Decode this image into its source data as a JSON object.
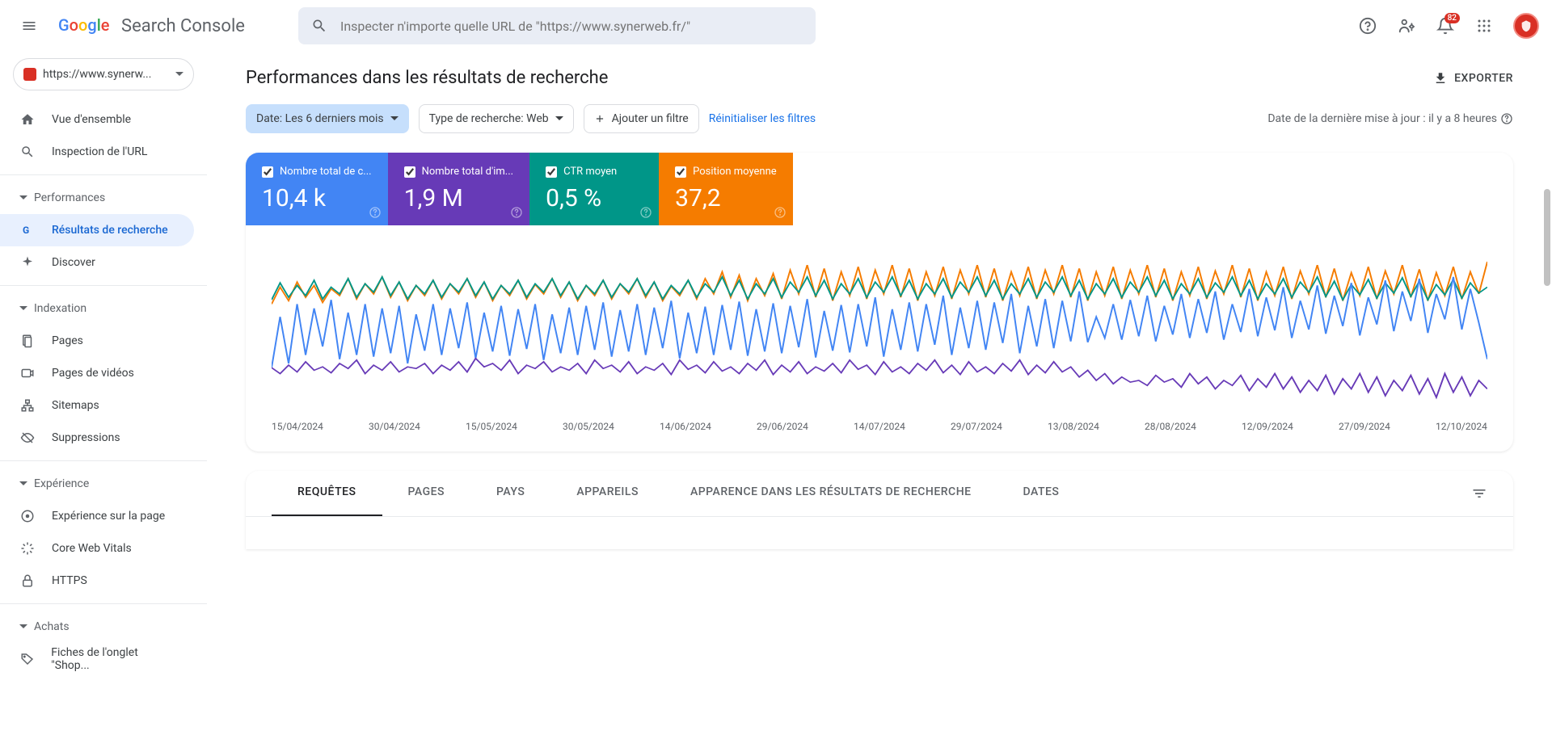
{
  "header": {
    "logo_text": "Search Console",
    "search_placeholder": "Inspecter n'importe quelle URL de \"https://www.synerweb.fr/\"",
    "notification_count": "82"
  },
  "sidebar": {
    "property": "https://www.synerw...",
    "items": {
      "overview": "Vue d'ensemble",
      "url_inspect": "Inspection de l'URL",
      "section_perf": "Performances",
      "search_results": "Résultats de recherche",
      "discover": "Discover",
      "section_index": "Indexation",
      "pages": "Pages",
      "video_pages": "Pages de vidéos",
      "sitemaps": "Sitemaps",
      "removals": "Suppressions",
      "section_exp": "Expérience",
      "page_exp": "Expérience sur la page",
      "cwv": "Core Web Vitals",
      "https": "HTTPS",
      "section_shop": "Achats",
      "shop_tab": "Fiches de l'onglet \"Shop..."
    }
  },
  "page": {
    "title": "Performances dans les résultats de recherche",
    "export": "EXPORTER"
  },
  "filters": {
    "date": "Date: Les 6 derniers mois",
    "type": "Type de recherche: Web",
    "add": "Ajouter un filtre",
    "reset": "Réinitialiser les filtres",
    "updated": "Date de la dernière mise à jour : il y a 8 heures"
  },
  "metrics": [
    {
      "label": "Nombre total de c...",
      "value": "10,4 k",
      "color": "#4285f4"
    },
    {
      "label": "Nombre total d'im...",
      "value": "1,9 M",
      "color": "#673ab7"
    },
    {
      "label": "CTR moyen",
      "value": "0,5 %",
      "color": "#009688"
    },
    {
      "label": "Position moyenne",
      "value": "37,2",
      "color": "#f57c00"
    }
  ],
  "chart": {
    "type": "line",
    "series_colors": {
      "clicks": "#4285f4",
      "impressions": "#673ab7",
      "ctr": "#009688",
      "position": "#f57c00"
    },
    "line_width": 1.5,
    "background": "#ffffff",
    "x_labels": [
      "15/04/2024",
      "30/04/2024",
      "15/05/2024",
      "30/05/2024",
      "14/06/2024",
      "29/06/2024",
      "14/07/2024",
      "29/07/2024",
      "13/08/2024",
      "28/08/2024",
      "12/09/2024",
      "27/09/2024",
      "12/10/2024"
    ],
    "series": {
      "clicks": [
        55,
        115,
        60,
        130,
        70,
        125,
        80,
        135,
        65,
        120,
        70,
        130,
        68,
        125,
        72,
        128,
        60,
        118,
        75,
        130,
        70,
        125,
        78,
        132,
        66,
        120,
        74,
        128,
        69,
        124,
        77,
        130,
        64,
        118,
        72,
        126,
        70,
        128,
        76,
        132,
        68,
        123,
        74,
        130,
        70,
        126,
        78,
        134,
        66,
        120,
        72,
        127,
        70,
        129,
        76,
        133,
        69,
        124,
        74,
        131,
        72,
        128,
        79,
        136,
        67,
        122,
        75,
        129,
        73,
        130,
        80,
        138,
        68,
        124,
        76,
        132,
        74,
        130,
        82,
        140,
        70,
        126,
        78,
        134,
        76,
        132,
        84,
        142,
        72,
        128,
        80,
        136,
        78,
        134,
        86,
        145,
        85,
        115,
        90,
        130,
        88,
        135,
        92,
        140,
        86,
        128,
        94,
        142,
        90,
        136,
        96,
        145,
        88,
        130,
        97,
        148,
        92,
        138,
        99,
        150,
        90,
        134,
        100,
        152,
        95,
        140,
        104,
        155,
        93,
        138,
        106,
        158,
        98,
        145,
        110,
        160,
        96,
        142,
        112,
        162,
        100,
        148,
        108,
        65
      ],
      "impressions": [
        55,
        48,
        58,
        50,
        62,
        52,
        56,
        49,
        60,
        54,
        64,
        48,
        58,
        52,
        62,
        50,
        56,
        54,
        60,
        48,
        58,
        52,
        62,
        50,
        66,
        56,
        60,
        52,
        64,
        48,
        58,
        54,
        62,
        50,
        56,
        52,
        60,
        48,
        64,
        54,
        58,
        50,
        62,
        48,
        56,
        52,
        60,
        47,
        64,
        53,
        58,
        49,
        62,
        51,
        56,
        48,
        60,
        52,
        64,
        47,
        58,
        50,
        62,
        48,
        56,
        51,
        60,
        49,
        64,
        53,
        58,
        47,
        62,
        50,
        56,
        48,
        60,
        52,
        64,
        49,
        58,
        47,
        62,
        50,
        56,
        48,
        60,
        51,
        64,
        47,
        58,
        49,
        62,
        50,
        56,
        44,
        52,
        40,
        48,
        36,
        44,
        38,
        40,
        34,
        46,
        38,
        42,
        32,
        48,
        36,
        44,
        30,
        40,
        34,
        46,
        28,
        42,
        32,
        48,
        30,
        44,
        26,
        40,
        28,
        46,
        24,
        42,
        30,
        48,
        26,
        44,
        22,
        40,
        28,
        46,
        24,
        42,
        20,
        48,
        26,
        44,
        22,
        40,
        30
      ],
      "ctr": [
        135,
        155,
        138,
        152,
        140,
        158,
        136,
        150,
        142,
        160,
        138,
        154,
        144,
        162,
        140,
        156,
        136,
        152,
        142,
        158,
        138,
        154,
        144,
        160,
        140,
        156,
        136,
        152,
        142,
        158,
        138,
        154,
        144,
        160,
        140,
        156,
        136,
        152,
        142,
        158,
        138,
        154,
        144,
        160,
        140,
        156,
        136,
        152,
        142,
        158,
        138,
        154,
        144,
        162,
        140,
        158,
        136,
        154,
        142,
        160,
        138,
        156,
        144,
        162,
        140,
        158,
        136,
        154,
        142,
        160,
        138,
        156,
        144,
        162,
        140,
        158,
        136,
        154,
        142,
        160,
        138,
        156,
        144,
        162,
        140,
        158,
        136,
        154,
        142,
        160,
        138,
        156,
        144,
        162,
        140,
        158,
        136,
        154,
        142,
        160,
        138,
        156,
        144,
        162,
        140,
        158,
        136,
        154,
        142,
        160,
        138,
        155,
        144,
        162,
        140,
        158,
        136,
        154,
        142,
        160,
        138,
        156,
        144,
        162,
        139,
        157,
        135,
        153,
        141,
        159,
        137,
        155,
        143,
        161,
        139,
        157,
        135,
        153,
        141,
        159,
        137,
        155,
        143,
        150
      ],
      "position": [
        130,
        150,
        134,
        156,
        138,
        152,
        132,
        148,
        140,
        160,
        136,
        154,
        142,
        162,
        138,
        156,
        134,
        152,
        140,
        158,
        136,
        154,
        142,
        160,
        138,
        156,
        134,
        152,
        140,
        158,
        136,
        153,
        142,
        160,
        138,
        156,
        134,
        152,
        140,
        158,
        136,
        154,
        142,
        160,
        138,
        156,
        134,
        151,
        140,
        158,
        136,
        160,
        142,
        168,
        138,
        164,
        134,
        160,
        140,
        166,
        136,
        170,
        142,
        176,
        138,
        172,
        134,
        168,
        140,
        174,
        136,
        170,
        142,
        176,
        138,
        172,
        134,
        168,
        140,
        174,
        136,
        170,
        142,
        176,
        138,
        172,
        134,
        168,
        140,
        174,
        136,
        170,
        142,
        176,
        138,
        172,
        134,
        168,
        140,
        174,
        136,
        170,
        142,
        176,
        138,
        172,
        134,
        168,
        140,
        174,
        136,
        169,
        142,
        176,
        138,
        172,
        134,
        168,
        140,
        174,
        136,
        169,
        142,
        176,
        138,
        172,
        134,
        167,
        140,
        174,
        136,
        169,
        142,
        176,
        138,
        171,
        134,
        167,
        140,
        174,
        136,
        168,
        142,
        180
      ]
    }
  },
  "tabs": [
    "REQUÊTES",
    "PAGES",
    "PAYS",
    "APPAREILS",
    "APPARENCE DANS LES RÉSULTATS DE RECHERCHE",
    "DATES"
  ],
  "active_tab": 0
}
